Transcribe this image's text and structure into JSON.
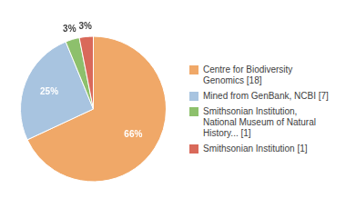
{
  "chart_data": {
    "type": "pie",
    "categories": [
      "Centre for Biodiversity\nGenomics [18]",
      "Mined from GenBank, NCBI [7]",
      "Smithsonian Institution,\nNational Museum of Natural\nHistory... [1]",
      "Smithsonian Institution [1]"
    ],
    "values": [
      66,
      25,
      3,
      3
    ],
    "value_labels": [
      "66%",
      "25%",
      "3%",
      "3%"
    ],
    "colors": [
      "#f0a868",
      "#a8c4e0",
      "#8dc06c",
      "#d9695a"
    ],
    "data_labels": true,
    "legend": "right"
  }
}
